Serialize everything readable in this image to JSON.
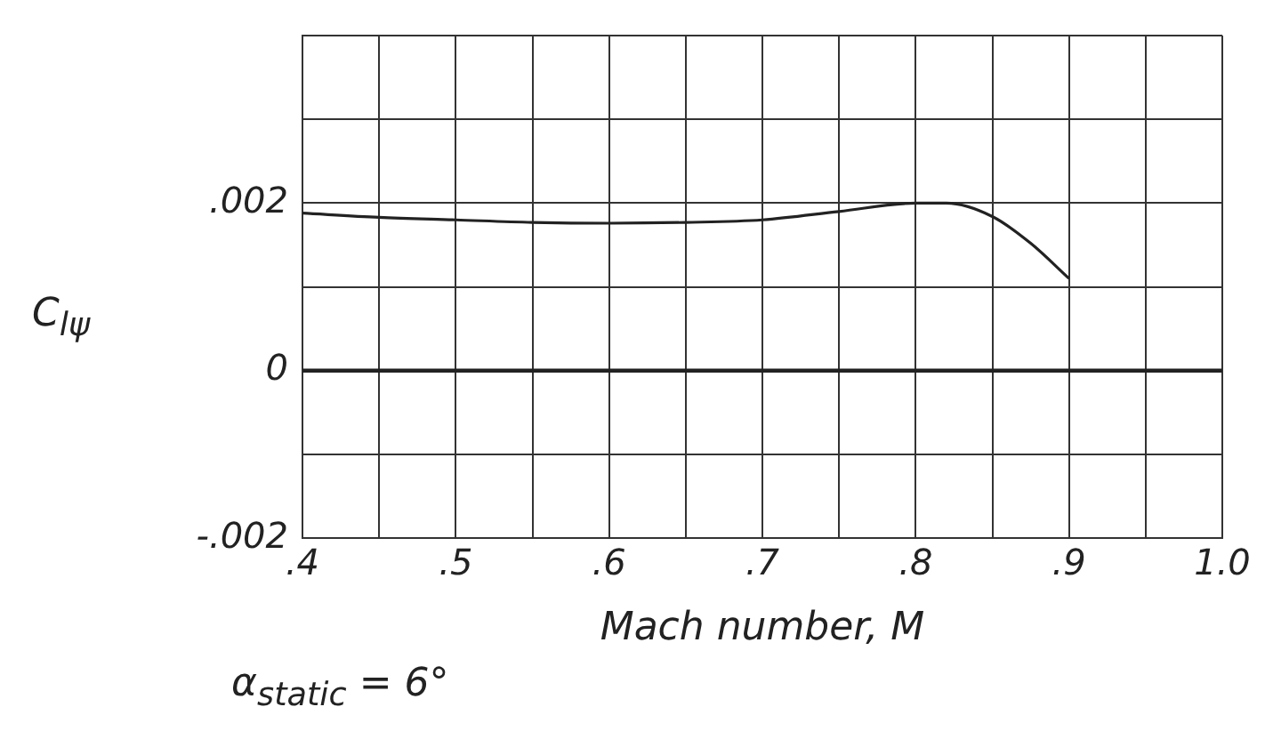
{
  "chart_data": {
    "type": "line",
    "xlabel": "Mach number, M",
    "ylabel": "C$_{lψ}$",
    "annotations": [
      "α$_{static}$ = 6°"
    ],
    "series": [
      {
        "color": "#222222",
        "x": [
          0.4,
          0.45,
          0.5,
          0.55,
          0.6,
          0.65,
          0.7,
          0.75,
          0.8,
          0.82,
          0.85,
          0.875,
          0.9
        ],
        "values": [
          0.00188,
          0.00183,
          0.0018,
          0.00177,
          0.00176,
          0.00177,
          0.0018,
          0.0019,
          0.002,
          0.002,
          0.00184,
          0.00152,
          0.0011
        ]
      }
    ],
    "xlim": [
      0.4,
      1.0
    ],
    "xticks": [
      {
        "value": 0.4,
        "label": ".4"
      },
      {
        "value": 0.45,
        "label": null
      },
      {
        "value": 0.5,
        "label": ".5"
      },
      {
        "value": 0.55,
        "label": null
      },
      {
        "value": 0.6,
        "label": ".6"
      },
      {
        "value": 0.65,
        "label": null
      },
      {
        "value": 0.7,
        "label": ".7"
      },
      {
        "value": 0.75,
        "label": null
      },
      {
        "value": 0.8,
        "label": ".8"
      },
      {
        "value": 0.85,
        "label": null
      },
      {
        "value": 0.9,
        "label": ".9"
      },
      {
        "value": 0.95,
        "label": null
      },
      {
        "value": 1.0,
        "label": "1.0"
      }
    ],
    "ylim": [
      -0.002,
      0.004
    ],
    "yticks": [
      {
        "value": -0.002,
        "label": "-.002"
      },
      {
        "value": -0.001,
        "label": null
      },
      {
        "value": 0,
        "label": "0"
      },
      {
        "value": 0.001,
        "label": null
      },
      {
        "value": 0.002,
        "label": ".002"
      },
      {
        "value": 0.003,
        "label": null
      },
      {
        "value": 0.004,
        "label": null
      }
    ],
    "ref_lines": [
      {
        "axis": "y",
        "value": 0,
        "color": "#222222"
      }
    ],
    "grid": true,
    "legend": false,
    "marker": "none",
    "line_style": "solid"
  }
}
